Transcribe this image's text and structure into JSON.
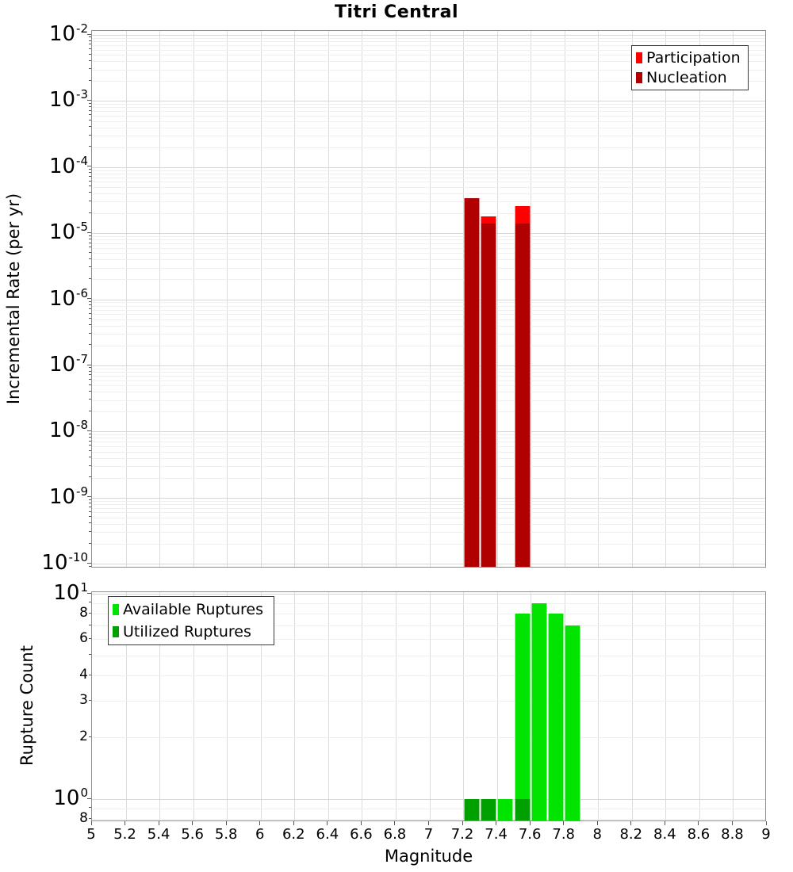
{
  "title": "Titri Central",
  "colors": {
    "participation": "#FF0000",
    "nucleation": "#B00000",
    "available": "#00E400",
    "utilized": "#00A000",
    "grid_major": "#D7D7D7",
    "grid_minor": "#EFEFEF",
    "axis_border": "#8F8F8F"
  },
  "x_axis": {
    "label": "Magnitude",
    "min": 5,
    "max": 9,
    "tick_step": 0.2,
    "ticks": [
      {
        "v": 5,
        "label": "5"
      },
      {
        "v": 5.2,
        "label": "5.2"
      },
      {
        "v": 5.4,
        "label": "5.4"
      },
      {
        "v": 5.6,
        "label": "5.6"
      },
      {
        "v": 5.8,
        "label": "5.8"
      },
      {
        "v": 6,
        "label": "6"
      },
      {
        "v": 6.2,
        "label": "6.2"
      },
      {
        "v": 6.4,
        "label": "6.4"
      },
      {
        "v": 6.6,
        "label": "6.6"
      },
      {
        "v": 6.8,
        "label": "6.8"
      },
      {
        "v": 7,
        "label": "7"
      },
      {
        "v": 7.2,
        "label": "7.2"
      },
      {
        "v": 7.4,
        "label": "7.4"
      },
      {
        "v": 7.6,
        "label": "7.6"
      },
      {
        "v": 7.8,
        "label": "7.8"
      },
      {
        "v": 8,
        "label": "8"
      },
      {
        "v": 8.2,
        "label": "8.2"
      },
      {
        "v": 8.4,
        "label": "8.4"
      },
      {
        "v": 8.6,
        "label": "8.6"
      },
      {
        "v": 8.8,
        "label": "8.8"
      },
      {
        "v": 9,
        "label": "9"
      }
    ]
  },
  "chart_data": [
    {
      "type": "bar",
      "panel": "top",
      "title": "Titri Central",
      "xlabel": "",
      "ylabel": "Incremental Rate (per yr)",
      "yscale": "log",
      "ylim": [
        1e-10,
        0.01
      ],
      "xlim": [
        5,
        9
      ],
      "grid": true,
      "bar_width_mag": 0.094,
      "y_tick_exponents": [
        -2,
        -3,
        -4,
        -5,
        -6,
        -7,
        -8,
        -9,
        -10
      ],
      "legend_position": "top-right",
      "series": [
        {
          "name": "Participation",
          "color": "#FF0000",
          "x": [
            7.25,
            7.35,
            7.55
          ],
          "y": [
            3.4e-05,
            1.8e-05,
            2.6e-05
          ]
        },
        {
          "name": "Nucleation",
          "color": "#B00000",
          "x": [
            7.25,
            7.35,
            7.55
          ],
          "y": [
            3.4e-05,
            1.4e-05,
            1.4e-05
          ]
        }
      ]
    },
    {
      "type": "bar",
      "panel": "bottom",
      "title": "",
      "xlabel": "Magnitude",
      "ylabel": "Rupture Count",
      "yscale": "log",
      "ylim": [
        0.77,
        10
      ],
      "xlim": [
        5,
        9
      ],
      "grid": true,
      "bar_width_mag": 0.094,
      "y_ticks": [
        {
          "v": 10,
          "base": "10",
          "exp": "1",
          "major": true
        },
        {
          "v": 8,
          "base": "8"
        },
        {
          "v": 6,
          "base": "6"
        },
        {
          "v": 4,
          "base": "4"
        },
        {
          "v": 3,
          "base": "3"
        },
        {
          "v": 2,
          "base": "2"
        },
        {
          "v": 1,
          "base": "10",
          "exp": "0",
          "major": true
        },
        {
          "v": 0.8,
          "base": "8"
        }
      ],
      "legend_position": "top-left",
      "series": [
        {
          "name": "Available Ruptures",
          "color": "#00E400",
          "x": [
            7.25,
            7.35,
            7.45,
            7.55,
            7.65,
            7.75,
            7.85
          ],
          "y": [
            1,
            1,
            1,
            8,
            9,
            8,
            7
          ]
        },
        {
          "name": "Utilized Ruptures",
          "color": "#00A000",
          "x": [
            7.25,
            7.35,
            7.55
          ],
          "y": [
            1,
            1,
            1
          ]
        }
      ]
    }
  ]
}
